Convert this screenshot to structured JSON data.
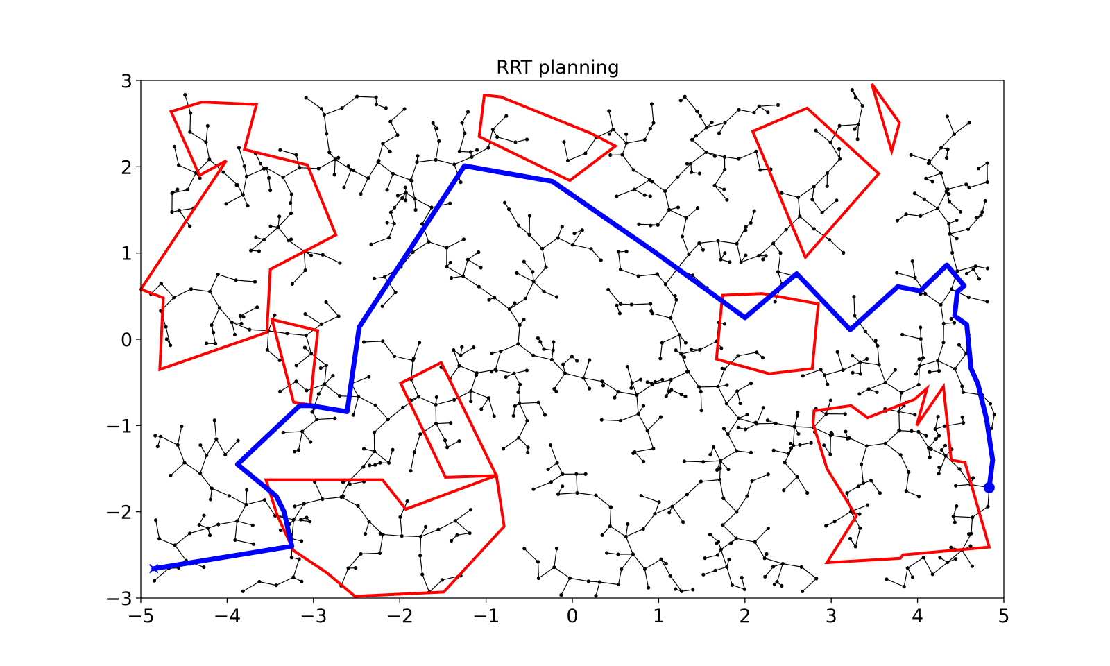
{
  "chart_data": {
    "type": "line",
    "title": "RRT planning",
    "xlabel": "",
    "ylabel": "",
    "xlim": [
      -5,
      5
    ],
    "ylim": [
      -3,
      3
    ],
    "xticks": [
      -5,
      -4,
      -3,
      -2,
      -1,
      0,
      1,
      2,
      3,
      4,
      5
    ],
    "yticks": [
      -3,
      -2,
      -1,
      0,
      1,
      2,
      3
    ],
    "xtick_labels": [
      "−5",
      "−4",
      "−3",
      "−2",
      "−1",
      "0",
      "1",
      "2",
      "3",
      "4",
      "5"
    ],
    "ytick_labels": [
      "−3",
      "−2",
      "−1",
      "0",
      "1",
      "2",
      "3"
    ],
    "grid": false,
    "colors": {
      "tree": "#000000",
      "obstacles": "#ff0000",
      "path": "#0000ff"
    },
    "start": {
      "x": 4.83,
      "y": -1.72,
      "marker": "circle"
    },
    "goal": {
      "x": -4.85,
      "y": -2.66,
      "marker": "x"
    },
    "path": [
      [
        4.83,
        -1.72
      ],
      [
        4.87,
        -1.4
      ],
      [
        4.8,
        -0.93
      ],
      [
        4.7,
        -0.52
      ],
      [
        4.62,
        -0.34
      ],
      [
        4.57,
        0.17
      ],
      [
        4.43,
        0.27
      ],
      [
        4.46,
        0.55
      ],
      [
        4.54,
        0.62
      ],
      [
        4.34,
        0.86
      ],
      [
        4.03,
        0.56
      ],
      [
        3.77,
        0.61
      ],
      [
        3.22,
        0.11
      ],
      [
        2.6,
        0.76
      ],
      [
        2.0,
        0.25
      ],
      [
        0.97,
        1.0
      ],
      [
        -0.23,
        1.83
      ],
      [
        -1.25,
        2.01
      ],
      [
        -2.47,
        0.14
      ],
      [
        -2.61,
        -0.84
      ],
      [
        -3.03,
        -0.77
      ],
      [
        -3.16,
        -0.77
      ],
      [
        -3.88,
        -1.45
      ],
      [
        -3.43,
        -1.82
      ],
      [
        -3.34,
        -2.0
      ],
      [
        -3.25,
        -2.4
      ],
      [
        -4.85,
        -2.66
      ]
    ],
    "obstacles": [
      [
        [
          -4.65,
          2.64
        ],
        [
          -4.29,
          2.75
        ],
        [
          -3.66,
          2.72
        ],
        [
          -3.8,
          2.2
        ],
        [
          -3.07,
          2.02
        ],
        [
          -2.74,
          1.21
        ],
        [
          -3.5,
          0.81
        ],
        [
          -3.54,
          0.08
        ],
        [
          -4.78,
          -0.35
        ],
        [
          -4.74,
          0.48
        ],
        [
          -5.0,
          0.58
        ],
        [
          -4.01,
          2.07
        ],
        [
          -4.32,
          1.9
        ]
      ],
      [
        [
          -3.48,
          0.23
        ],
        [
          -2.95,
          0.1
        ],
        [
          -3.04,
          -0.76
        ],
        [
          -3.23,
          -0.73
        ]
      ],
      [
        [
          -1.99,
          -0.51
        ],
        [
          -1.52,
          -0.27
        ],
        [
          -0.88,
          -1.58
        ],
        [
          -1.47,
          -1.6
        ]
      ],
      [
        [
          -3.55,
          -1.63
        ],
        [
          -2.2,
          -1.63
        ],
        [
          -1.93,
          -1.97
        ],
        [
          -0.88,
          -1.58
        ],
        [
          -0.79,
          -2.17
        ],
        [
          -1.49,
          -2.93
        ],
        [
          -2.52,
          -2.98
        ],
        [
          -2.84,
          -2.71
        ],
        [
          -3.23,
          -2.45
        ],
        [
          -3.42,
          -2.04
        ]
      ],
      [
        [
          -1.02,
          2.83
        ],
        [
          -0.83,
          2.81
        ],
        [
          0.21,
          2.39
        ],
        [
          0.5,
          2.24
        ],
        [
          -0.03,
          1.84
        ],
        [
          -1.08,
          2.35
        ]
      ],
      [
        [
          2.09,
          2.41
        ],
        [
          2.72,
          2.68
        ],
        [
          3.55,
          1.92
        ],
        [
          2.7,
          0.95
        ]
      ],
      [
        [
          3.47,
          2.96
        ],
        [
          3.79,
          2.51
        ],
        [
          3.7,
          2.18
        ]
      ],
      [
        [
          1.74,
          0.51
        ],
        [
          2.2,
          0.53
        ],
        [
          2.85,
          0.41
        ],
        [
          2.78,
          -0.34
        ],
        [
          2.28,
          -0.4
        ],
        [
          1.67,
          -0.23
        ]
      ],
      [
        [
          2.8,
          -0.83
        ],
        [
          3.23,
          -0.77
        ],
        [
          3.42,
          -0.91
        ],
        [
          3.96,
          -0.7
        ],
        [
          4.11,
          -0.57
        ],
        [
          3.99,
          -1.0
        ],
        [
          4.3,
          -0.55
        ],
        [
          4.39,
          -1.4
        ],
        [
          4.55,
          -1.43
        ],
        [
          4.83,
          -2.41
        ],
        [
          3.83,
          -2.5
        ],
        [
          3.8,
          -2.54
        ],
        [
          2.95,
          -2.59
        ],
        [
          3.29,
          -2.05
        ],
        [
          2.95,
          -1.5
        ],
        [
          2.79,
          -0.98
        ]
      ]
    ]
  }
}
